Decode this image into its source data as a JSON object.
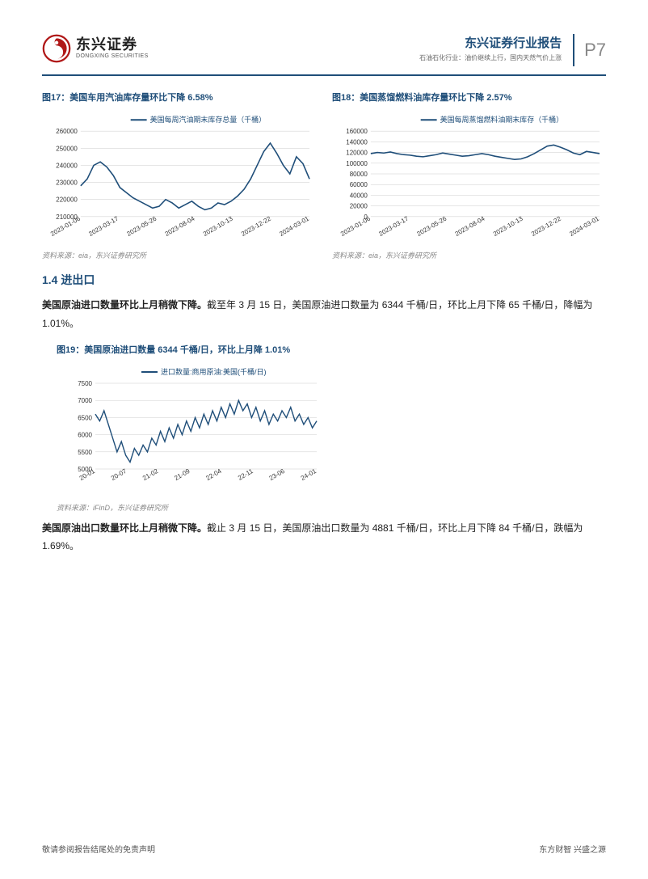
{
  "header": {
    "logo_cn": "东兴证券",
    "logo_en": "DONGXING SECURITIES",
    "report_title": "东兴证券行业报告",
    "report_subtitle": "石油石化行业：油价继续上行，国内天然气价上涨",
    "page_number": "P7",
    "logo_color": "#b01818"
  },
  "chart17": {
    "title": "图17：美国车用汽油库存量环比下降 6.58%",
    "legend": "美国每周汽油期末库存总量（千桶）",
    "type": "line",
    "line_color": "#1f4e79",
    "background_color": "#ffffff",
    "grid_color": "#cccccc",
    "ylim": [
      210000,
      260000
    ],
    "ytick_step": 10000,
    "yticks": [
      "210000",
      "220000",
      "230000",
      "240000",
      "250000",
      "260000"
    ],
    "xticks": [
      "2023-01-06",
      "2023-03-17",
      "2023-05-26",
      "2023-08-04",
      "2023-10-13",
      "2023-12-22",
      "2024-03-01"
    ],
    "values": [
      228000,
      232000,
      240000,
      242000,
      239000,
      234000,
      227000,
      224000,
      221000,
      219000,
      217000,
      215000,
      216000,
      220000,
      218000,
      215000,
      217000,
      219000,
      216000,
      214000,
      215000,
      218000,
      217000,
      219000,
      222000,
      226000,
      232000,
      240000,
      248000,
      253000,
      247000,
      240000,
      235000,
      245000,
      241000,
      232000
    ],
    "source": "资料来源：eia，东兴证券研究所",
    "line_width": 1.6
  },
  "chart18": {
    "title": "图18：美国蒸馏燃料油库存量环比下降 2.57%",
    "legend": "美国每周蒸馏燃料油期末库存（千桶）",
    "type": "line",
    "line_color": "#1f4e79",
    "background_color": "#ffffff",
    "grid_color": "#cccccc",
    "ylim": [
      0,
      160000
    ],
    "ytick_step": 20000,
    "yticks": [
      "0",
      "20000",
      "40000",
      "60000",
      "80000",
      "100000",
      "120000",
      "140000",
      "160000"
    ],
    "xticks": [
      "2023-01-06",
      "2023-03-17",
      "2023-05-26",
      "2023-08-04",
      "2023-10-13",
      "2023-12-22",
      "2024-03-01"
    ],
    "values": [
      118000,
      120000,
      119000,
      121000,
      118000,
      116000,
      115000,
      113000,
      112000,
      114000,
      116000,
      119000,
      117000,
      115000,
      113000,
      114000,
      116000,
      118000,
      116000,
      113000,
      111000,
      109000,
      107000,
      108000,
      112000,
      118000,
      125000,
      132000,
      134000,
      130000,
      125000,
      119000,
      116000,
      122000,
      120000,
      118000
    ],
    "source": "资料来源：eia，东兴证券研究所",
    "line_width": 1.6
  },
  "section": {
    "title": "1.4 进出口"
  },
  "para1": {
    "bold": "美国原油进口数量环比上月稍微下降。",
    "rest": "截至年 3 月 15 日，美国原油进口数量为 6344 千桶/日，环比上月下降 65 千桶/日，降幅为 1.01%。"
  },
  "chart19": {
    "title": "图19：美国原油进口数量 6344 千桶/日，环比上月降 1.01%",
    "legend": "进口数量:商用原油:美国(千桶/日)",
    "type": "line",
    "line_color": "#1f4e79",
    "background_color": "#ffffff",
    "grid_color": "#cccccc",
    "ylim": [
      5000,
      7500
    ],
    "ytick_step": 500,
    "yticks": [
      "5000",
      "5500",
      "6000",
      "6500",
      "7000",
      "7500"
    ],
    "xticks": [
      "20-01",
      "20-07",
      "21-02",
      "21-09",
      "22-04",
      "22-11",
      "23-06",
      "24-01"
    ],
    "values": [
      6600,
      6400,
      6700,
      6300,
      5900,
      5500,
      5800,
      5400,
      5200,
      5600,
      5400,
      5700,
      5500,
      5900,
      5700,
      6100,
      5800,
      6200,
      5900,
      6300,
      6000,
      6400,
      6100,
      6500,
      6200,
      6600,
      6300,
      6700,
      6400,
      6800,
      6500,
      6900,
      6600,
      7000,
      6700,
      6900,
      6500,
      6800,
      6400,
      6700,
      6300,
      6600,
      6400,
      6700,
      6500,
      6800,
      6400,
      6600,
      6300,
      6500,
      6200,
      6400
    ],
    "source": "资料来源：iFinD，东兴证券研究所",
    "line_width": 1.4
  },
  "para2": {
    "bold": "美国原油出口数量环比上月稍微下降。",
    "rest": "截止 3 月 15 日，美国原油出口数量为 4881 千桶/日，环比上月下降 84 千桶/日，跌幅为 1.69%。"
  },
  "footer": {
    "left": "敬请参阅报告结尾处的免责声明",
    "right": "东方财智 兴盛之源"
  }
}
